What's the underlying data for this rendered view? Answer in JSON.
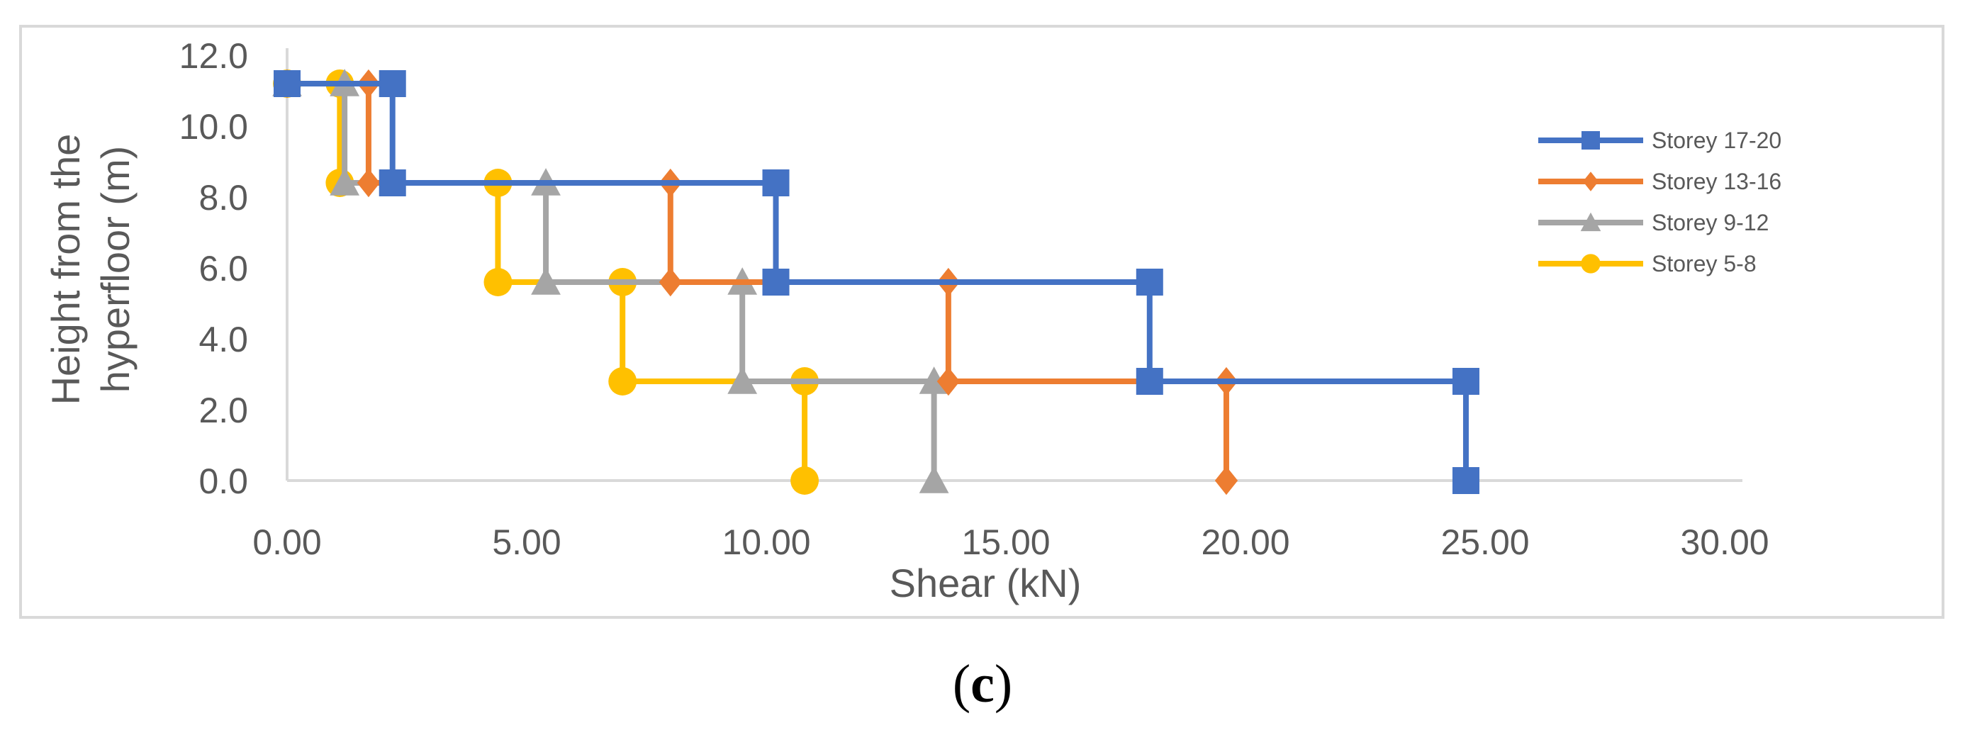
{
  "panel_label": {
    "open": "(",
    "letter": "c",
    "close": ")"
  },
  "colors": {
    "frame": "#d9d9d9",
    "axis": "#d9d9d9",
    "text": "#595959"
  },
  "chart_data": {
    "type": "line",
    "step_profile": true,
    "title": "",
    "xlabel": "Shear (kN)",
    "ylabel_lines": [
      "Height from the",
      "hyperfloor (m)"
    ],
    "xlim": [
      0,
      30
    ],
    "ylim": [
      0,
      12
    ],
    "x_ticks": [
      "0.00",
      "5.00",
      "10.00",
      "15.00",
      "20.00",
      "25.00",
      "30.00"
    ],
    "y_ticks": [
      "0.0",
      "2.0",
      "4.0",
      "6.0",
      "8.0",
      "10.0",
      "12.0"
    ],
    "grid": false,
    "legend_position": "right",
    "series": [
      {
        "name": "Storey 17-20",
        "color": "#4472c4",
        "marker": "square",
        "x": [
          0,
          2.2,
          2.2,
          10.2,
          10.2,
          18.0,
          18.0,
          24.6,
          24.6
        ],
        "y": [
          11.2,
          11.2,
          8.4,
          8.4,
          5.6,
          5.6,
          2.8,
          2.8,
          0.0
        ]
      },
      {
        "name": "Storey 13-16",
        "color": "#ed7d31",
        "marker": "diamond",
        "x": [
          0,
          1.7,
          1.7,
          8.0,
          8.0,
          13.8,
          13.8,
          19.6,
          19.6
        ],
        "y": [
          11.2,
          11.2,
          8.4,
          8.4,
          5.6,
          5.6,
          2.8,
          2.8,
          0.0
        ]
      },
      {
        "name": "Storey 9-12",
        "color": "#a5a5a5",
        "marker": "triangle",
        "x": [
          0,
          1.2,
          1.2,
          5.4,
          5.4,
          9.5,
          9.5,
          13.5,
          13.5
        ],
        "y": [
          11.2,
          11.2,
          8.4,
          8.4,
          5.6,
          5.6,
          2.8,
          2.8,
          0.0
        ]
      },
      {
        "name": "Storey 5-8",
        "color": "#ffc000",
        "marker": "circle",
        "x": [
          0,
          1.1,
          1.1,
          4.4,
          4.4,
          7.0,
          7.0,
          10.8,
          10.8
        ],
        "y": [
          11.2,
          11.2,
          8.4,
          8.4,
          5.6,
          5.6,
          2.8,
          2.8,
          0.0
        ]
      }
    ]
  }
}
